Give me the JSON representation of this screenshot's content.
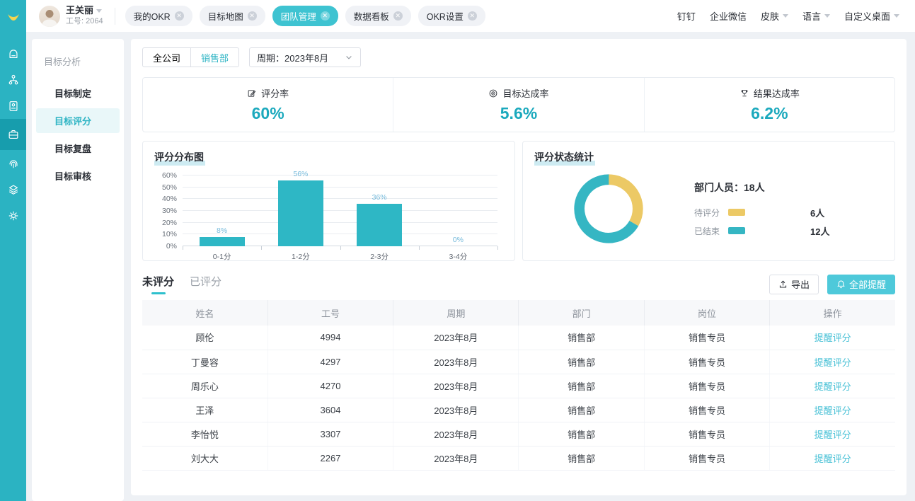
{
  "colors": {
    "accent_teal": "#2bb3c2",
    "accent_yellow": "#ecc965",
    "link_teal": "#49c1d6",
    "stat_value_teal": "#1ba9bd"
  },
  "header": {
    "logo_icon": "smile-logo-icon",
    "user": {
      "name": "王关丽",
      "employee_id": "工号: 2064"
    },
    "tabs": [
      {
        "label": "我的OKR",
        "active": false
      },
      {
        "label": "目标地图",
        "active": false
      },
      {
        "label": "团队管理",
        "active": true
      },
      {
        "label": "数据看板",
        "active": false
      },
      {
        "label": "OKR设置",
        "active": false
      }
    ],
    "right_menu": [
      {
        "label": "钉钉",
        "dropdown": false
      },
      {
        "label": "企业微信",
        "dropdown": false
      },
      {
        "label": "皮肤",
        "dropdown": true
      },
      {
        "label": "语言",
        "dropdown": true
      },
      {
        "label": "自定义桌面",
        "dropdown": true
      }
    ]
  },
  "rail": {
    "items": [
      {
        "icon": "home-icon",
        "active": false
      },
      {
        "icon": "org-chart-icon",
        "active": false
      },
      {
        "icon": "id-card-icon",
        "active": false
      },
      {
        "icon": "briefcase-icon",
        "active": true
      },
      {
        "icon": "fingerprint-icon",
        "active": false
      },
      {
        "icon": "layers-icon",
        "active": false
      },
      {
        "icon": "gear-icon",
        "active": false
      }
    ]
  },
  "sidebar": {
    "section_title": "目标分析",
    "items": [
      {
        "label": "目标制定",
        "active": false
      },
      {
        "label": "目标评分",
        "active": true
      },
      {
        "label": "目标复盘",
        "active": false
      },
      {
        "label": "目标审核",
        "active": false
      }
    ]
  },
  "filters": {
    "scope_buttons": [
      {
        "label": "全公司",
        "active": false
      },
      {
        "label": "销售部",
        "active": true
      }
    ],
    "period_dropdown": "周期：2023年8月"
  },
  "stats": [
    {
      "icon": "score-rate-icon",
      "label": "评分率",
      "value": "60%"
    },
    {
      "icon": "target-rate-icon",
      "label": "目标达成率",
      "value": "5.6%"
    },
    {
      "icon": "result-rate-icon",
      "label": "结果达成率",
      "value": "6.2%"
    }
  ],
  "chart_data": [
    {
      "type": "bar",
      "title": "评分分布图",
      "categories": [
        "0-1分",
        "1-2分",
        "2-3分",
        "3-4分"
      ],
      "values": [
        8,
        56,
        36,
        0
      ],
      "value_labels": [
        "8%",
        "56%",
        "36%",
        "0%"
      ],
      "ylim": [
        0,
        60
      ],
      "ytick_step": 10,
      "ytick_suffix": "%",
      "grid": true,
      "bar_color": "#2eb7c5",
      "label_color": "#76badb"
    },
    {
      "type": "donut",
      "title": "评分状态统计",
      "total_label": "部门人员：18人",
      "series": [
        {
          "name": "待评分",
          "value": 6,
          "value_label": "6人",
          "color": "#ecc965"
        },
        {
          "name": "已结束",
          "value": 12,
          "value_label": "12人",
          "color": "#35b6c3"
        }
      ]
    }
  ],
  "table_section": {
    "tabs": [
      {
        "label": "未评分",
        "active": true
      },
      {
        "label": "已评分",
        "active": false
      }
    ],
    "export_button": "导出",
    "remind_all_button": "全部提醒",
    "columns": [
      "姓名",
      "工号",
      "周期",
      "部门",
      "岗位",
      "操作"
    ],
    "action_label": "提醒评分",
    "rows": [
      [
        "顾伦",
        "4994",
        "2023年8月",
        "销售部",
        "销售专员"
      ],
      [
        "丁曼容",
        "4297",
        "2023年8月",
        "销售部",
        "销售专员"
      ],
      [
        "周乐心",
        "4270",
        "2023年8月",
        "销售部",
        "销售专员"
      ],
      [
        "王泽",
        "3604",
        "2023年8月",
        "销售部",
        "销售专员"
      ],
      [
        "李怡悦",
        "3307",
        "2023年8月",
        "销售部",
        "销售专员"
      ],
      [
        "刘大大",
        "2267",
        "2023年8月",
        "销售部",
        "销售专员"
      ]
    ]
  }
}
